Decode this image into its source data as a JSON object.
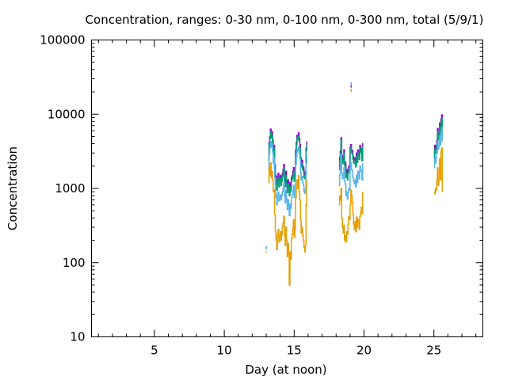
{
  "chart_data": {
    "type": "line",
    "title": "Concentration, ranges: 0-30 nm, 0-100 nm, 0-300 nm, total (5/9/1)",
    "xlabel": "Day (at noon)",
    "ylabel": "Concentration",
    "xlim": [
      0.5,
      28.5
    ],
    "ylim": [
      10,
      100000
    ],
    "yscale": "log",
    "xticks": [
      5,
      10,
      15,
      20,
      25
    ],
    "xtick_labels": [
      "5",
      "10",
      "15",
      "20",
      "25"
    ],
    "yticks": [
      10,
      100,
      1000,
      10000,
      100000
    ],
    "ytick_labels": [
      "10",
      "100",
      "1000",
      "10000",
      "100000"
    ],
    "grid": false,
    "legend": "none",
    "style": "steps",
    "series": [
      {
        "name": "total",
        "color": "#9400d3",
        "segments": [
          {
            "x": [
              13.15,
              13.2,
              13.25,
              13.3,
              13.35,
              13.4,
              13.45,
              13.5,
              13.55,
              13.6,
              13.65,
              13.7,
              13.75,
              13.8,
              13.85,
              13.9,
              13.95,
              14.0,
              14.05,
              14.1,
              14.15,
              14.2,
              14.25,
              14.3,
              14.35,
              14.4,
              14.45,
              14.5,
              14.55,
              14.6,
              14.65,
              14.7,
              14.75,
              14.8,
              14.85,
              14.9,
              14.95,
              15.0,
              15.05,
              15.1,
              15.15,
              15.2,
              15.25,
              15.3,
              15.35,
              15.4,
              15.45,
              15.5,
              15.55,
              15.6,
              15.65,
              15.7,
              15.75,
              15.8,
              15.85,
              15.9
            ],
            "y": [
              2600,
              4200,
              5000,
              6300,
              5200,
              5800,
              4500,
              3200,
              3800,
              2100,
              1500,
              1300,
              1100,
              1450,
              1600,
              1200,
              1400,
              1500,
              1250,
              1400,
              1600,
              1800,
              2100,
              1400,
              1200,
              1700,
              1300,
              1000,
              1300,
              1100,
              900,
              1200,
              1050,
              1400,
              1500,
              1700,
              1900,
              1400,
              1600,
              3300,
              4200,
              5200,
              5000,
              5600,
              4700,
              3900,
              2600,
              2200,
              2400,
              2000,
              1900,
              1600,
              1500,
              1700,
              3500,
              4300
            ]
          },
          {
            "x": [
              18.2,
              18.25,
              18.3,
              18.35,
              18.4,
              18.45,
              18.5,
              18.55,
              18.6,
              18.65,
              18.7,
              18.75,
              18.8,
              18.85,
              18.9,
              18.95,
              19.0,
              19.05,
              19.1,
              19.15,
              19.2,
              19.25,
              19.3,
              19.35,
              19.4,
              19.45,
              19.5,
              19.55,
              19.6,
              19.65,
              19.7,
              19.75,
              19.8,
              19.85,
              19.9
            ],
            "y": [
              2000,
              2600,
              3200,
              4800,
              2800,
              2400,
              2600,
              3300,
              2300,
              2200,
              1600,
              1800,
              1500,
              1800,
              2000,
              1900,
              3600,
              3900,
              3300,
              3200,
              2700,
              2500,
              2400,
              2600,
              2200,
              3000,
              2500,
              3300,
              3100,
              2700,
              3800,
              3500,
              3300,
              2600,
              4100
            ]
          },
          {
            "x": [
              25.0,
              25.05,
              25.1,
              25.15,
              25.2,
              25.25,
              25.3,
              25.35,
              25.4,
              25.45,
              25.5,
              25.55,
              25.6
            ],
            "y": [
              2600,
              3800,
              3300,
              3800,
              4400,
              6400,
              5000,
              5500,
              7600,
              5800,
              8600,
              9800,
              6400
            ]
          },
          {
            "x": [
              19.08,
              19.12
            ],
            "y": [
              24000,
              24000
            ]
          }
        ]
      },
      {
        "name": "0-300 nm",
        "color": "#009e73",
        "segments": [
          {
            "x": [
              13.15,
              13.2,
              13.25,
              13.3,
              13.35,
              13.4,
              13.45,
              13.5,
              13.55,
              13.6,
              13.65,
              13.7,
              13.75,
              13.8,
              13.85,
              13.9,
              13.95,
              14.0,
              14.05,
              14.1,
              14.15,
              14.2,
              14.25,
              14.3,
              14.35,
              14.4,
              14.45,
              14.5,
              14.55,
              14.6,
              14.65,
              14.7,
              14.75,
              14.8,
              14.85,
              14.9,
              14.95,
              15.0,
              15.05,
              15.1,
              15.15,
              15.2,
              15.25,
              15.3,
              15.35,
              15.4,
              15.45,
              15.5,
              15.55,
              15.6,
              15.65,
              15.7,
              15.75,
              15.8,
              15.85,
              15.9
            ],
            "y": [
              2400,
              3900,
              4700,
              5800,
              4800,
              5300,
              4100,
              2900,
              3500,
              1900,
              1350,
              1150,
              950,
              1300,
              1400,
              1050,
              1250,
              1350,
              1100,
              1250,
              1450,
              1600,
              1900,
              1250,
              1050,
              1500,
              1150,
              880,
              1150,
              980,
              800,
              1050,
              930,
              1250,
              1350,
              1500,
              1700,
              1250,
              1450,
              3000,
              3900,
              4800,
              4600,
              5100,
              4300,
              3500,
              2300,
              1950,
              2150,
              1800,
              1700,
              1400,
              1350,
              1500,
              3200,
              3900
            ]
          },
          {
            "x": [
              18.2,
              18.25,
              18.3,
              18.35,
              18.4,
              18.45,
              18.5,
              18.55,
              18.6,
              18.65,
              18.7,
              18.75,
              18.8,
              18.85,
              18.9,
              18.95,
              19.0,
              19.05,
              19.1,
              19.15,
              19.2,
              19.25,
              19.3,
              19.35,
              19.4,
              19.45,
              19.5,
              19.55,
              19.6,
              19.65,
              19.7,
              19.75,
              19.8,
              19.85,
              19.9
            ],
            "y": [
              1800,
              2400,
              2900,
              4400,
              2500,
              2150,
              2350,
              3000,
              2050,
              1950,
              1400,
              1600,
              1300,
              1600,
              1800,
              1700,
              3300,
              3600,
              3000,
              2900,
              2450,
              2250,
              2150,
              2350,
              1950,
              2700,
              2250,
              3000,
              2800,
              2450,
              3450,
              3150,
              3000,
              2350,
              3700
            ]
          },
          {
            "x": [
              25.0,
              25.05,
              25.1,
              25.15,
              25.2,
              25.25,
              25.3,
              25.35,
              25.4,
              25.45,
              25.5,
              25.55,
              25.6
            ],
            "y": [
              2350,
              3400,
              3000,
              3400,
              4000,
              5800,
              4500,
              5000,
              6900,
              5200,
              7800,
              8900,
              5800
            ]
          }
        ]
      },
      {
        "name": "0-100 nm",
        "color": "#56b4e9",
        "segments": [
          {
            "x": [
              13.15,
              13.2,
              13.25,
              13.3,
              13.35,
              13.4,
              13.45,
              13.5,
              13.55,
              13.6,
              13.65,
              13.7,
              13.75,
              13.8,
              13.85,
              13.9,
              13.95,
              14.0,
              14.05,
              14.1,
              14.15,
              14.2,
              14.25,
              14.3,
              14.35,
              14.4,
              14.45,
              14.5,
              14.55,
              14.6,
              14.65,
              14.7,
              14.75,
              14.8,
              14.85,
              14.9,
              14.95,
              15.0,
              15.05,
              15.1,
              15.15,
              15.2,
              15.25,
              15.3,
              15.35,
              15.4,
              15.45,
              15.5,
              15.55,
              15.6,
              15.65,
              15.7,
              15.75,
              15.8,
              15.85,
              15.9
            ],
            "y": [
              1800,
              2900,
              3500,
              4300,
              3600,
              4000,
              3100,
              2200,
              2600,
              1400,
              900,
              760,
              600,
              820,
              900,
              680,
              760,
              820,
              700,
              800,
              900,
              1000,
              1200,
              780,
              640,
              950,
              720,
              520,
              700,
              580,
              430,
              620,
              540,
              760,
              820,
              920,
              1100,
              760,
              900,
              2100,
              2700,
              3400,
              3200,
              3600,
              3000,
              2500,
              1600,
              1300,
              1450,
              1200,
              1100,
              900,
              860,
              980,
              2200,
              2800
            ]
          },
          {
            "x": [
              18.2,
              18.25,
              18.3,
              18.35,
              18.4,
              18.45,
              18.5,
              18.55,
              18.6,
              18.65,
              18.7,
              18.75,
              18.8,
              18.85,
              18.9,
              18.95,
              19.0,
              19.05,
              19.1,
              19.15,
              19.2,
              19.25,
              19.3,
              19.35,
              19.4,
              19.45,
              19.5,
              19.55,
              19.6,
              19.65,
              19.7,
              19.75,
              19.8,
              19.85,
              19.9
            ],
            "y": [
              1100,
              1500,
              1800,
              2900,
              1600,
              1350,
              1500,
              1900,
              1250,
              1150,
              800,
              900,
              720,
              880,
              1000,
              950,
              2000,
              2200,
              1800,
              1700,
              1400,
              1250,
              1150,
              1300,
              1050,
              1500,
              1200,
              1700,
              1600,
              1350,
              2000,
              1800,
              1700,
              1300,
              2200
            ]
          },
          {
            "x": [
              25.0,
              25.05,
              25.1,
              25.15,
              25.2,
              25.25,
              25.3,
              25.35,
              25.4,
              25.45,
              25.5,
              25.55,
              25.6
            ],
            "y": [
              1900,
              2500,
              2200,
              2600,
              3000,
              4300,
              3400,
              3700,
              5100,
              3900,
              5800,
              6600,
              4300
            ]
          },
          {
            "x": [
              12.95,
              13.0
            ],
            "y": [
              165,
              150
            ]
          },
          {
            "x": [
              19.08,
              19.12
            ],
            "y": [
              25500,
              25500
            ]
          }
        ]
      },
      {
        "name": "0-30 nm",
        "color": "#e69f00",
        "segments": [
          {
            "x": [
              13.15,
              13.2,
              13.25,
              13.3,
              13.35,
              13.4,
              13.45,
              13.5,
              13.55,
              13.6,
              13.65,
              13.7,
              13.75,
              13.8,
              13.85,
              13.9,
              13.95,
              14.0,
              14.05,
              14.1,
              14.15,
              14.2,
              14.25,
              14.3,
              14.35,
              14.4,
              14.45,
              14.5,
              14.55,
              14.6,
              14.65,
              14.7,
              14.75,
              14.8,
              14.85,
              14.9,
              14.95,
              15.0,
              15.05,
              15.1,
              15.15,
              15.2,
              15.25,
              15.3,
              15.35,
              15.4,
              15.45,
              15.5,
              15.55,
              15.6,
              15.65,
              15.7,
              15.75,
              15.8,
              15.85,
              15.9
            ],
            "y": [
              1200,
              1900,
              1500,
              2200,
              1400,
              1700,
              1300,
              900,
              950,
              450,
              260,
              200,
              150,
              240,
              280,
              190,
              230,
              260,
              200,
              240,
              300,
              340,
              420,
              230,
              170,
              300,
              200,
              120,
              180,
              130,
              50,
              140,
              110,
              210,
              240,
              300,
              380,
              220,
              280,
              750,
              1100,
              1300,
              1000,
              1500,
              900,
              700,
              380,
              250,
              300,
              230,
              200,
              160,
              140,
              170,
              600,
              1300
            ]
          },
          {
            "x": [
              18.2,
              18.25,
              18.3,
              18.35,
              18.4,
              18.45,
              18.5,
              18.55,
              18.6,
              18.65,
              18.7,
              18.75,
              18.8,
              18.85,
              18.9,
              18.95,
              19.0,
              19.05,
              19.1,
              19.15,
              19.2,
              19.25,
              19.3,
              19.35,
              19.4,
              19.45,
              19.5,
              19.55,
              19.6,
              19.65,
              19.7,
              19.75,
              19.8,
              19.85,
              19.9
            ],
            "y": [
              600,
              800,
              700,
              1000,
              400,
              300,
              250,
              320,
              200,
              230,
              190,
              260,
              240,
              330,
              420,
              380,
              600,
              950,
              800,
              650,
              450,
              330,
              280,
              360,
              260,
              410,
              300,
              380,
              350,
              280,
              420,
              480,
              560,
              450,
              900
            ]
          },
          {
            "x": [
              25.0,
              25.05,
              25.1,
              25.15,
              25.2,
              25.25,
              25.3,
              25.35,
              25.4,
              25.45,
              25.5,
              25.55,
              25.6
            ],
            "y": [
              900,
              850,
              1000,
              950,
              1300,
              1900,
              1100,
              1400,
              2500,
              1300,
              3200,
              3500,
              900
            ]
          },
          {
            "x": [
              12.95,
              13.0
            ],
            "y": [
              140,
              135
            ]
          },
          {
            "x": [
              19.08,
              19.12
            ],
            "y": [
              21000,
              21000
            ]
          }
        ]
      }
    ]
  }
}
